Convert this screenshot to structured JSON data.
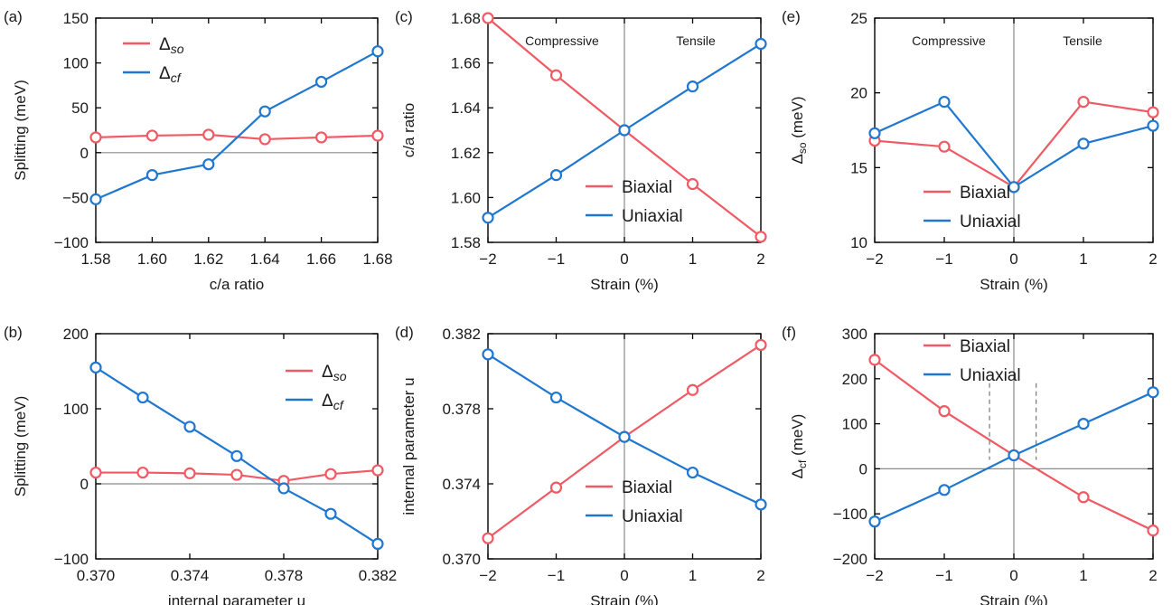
{
  "colors": {
    "red": "#ef5a64",
    "blue": "#1f77d0",
    "axis": "#000000",
    "zero": "#8a8a8a"
  },
  "chart_data": [
    {
      "panel": "(a)",
      "type": "line",
      "xlabel": "c/a ratio",
      "ylabel": "Splitting (meV)",
      "xlim": [
        1.58,
        1.68
      ],
      "ylim": [
        -100,
        150
      ],
      "xticks": [
        "1.58",
        "1.60",
        "1.62",
        "1.64",
        "1.66",
        "1.68"
      ],
      "yticks": [
        "−100",
        "−50",
        "0",
        "50",
        "100",
        "150"
      ],
      "x": [
        1.58,
        1.6,
        1.62,
        1.64,
        1.66,
        1.68
      ],
      "series": [
        {
          "name": "Δso",
          "sym": "Δ",
          "sub": "so",
          "color": "red",
          "values": [
            17,
            19,
            20,
            15,
            17,
            19
          ]
        },
        {
          "name": "Δcf",
          "sym": "Δ",
          "sub": "cf",
          "color": "blue",
          "values": [
            -52,
            -25,
            -13,
            46,
            79,
            113
          ]
        }
      ],
      "zero_line": true,
      "legend": "top-left",
      "grid": false
    },
    {
      "panel": "(c)",
      "type": "line",
      "xlabel": "Strain (%)",
      "ylabel": "c/a ratio",
      "xlim": [
        -2,
        2
      ],
      "ylim": [
        1.58,
        1.68
      ],
      "xticks": [
        "−2",
        "−1",
        "0",
        "1",
        "2"
      ],
      "yticks": [
        "1.58",
        "1.60",
        "1.62",
        "1.64",
        "1.66",
        "1.68"
      ],
      "x": [
        -2,
        -1,
        0,
        1,
        2
      ],
      "series": [
        {
          "name": "Biaxial",
          "color": "red",
          "values": [
            1.68,
            1.6545,
            1.63,
            1.606,
            1.5825
          ]
        },
        {
          "name": "Uniaxial",
          "color": "blue",
          "values": [
            1.591,
            1.61,
            1.63,
            1.6495,
            1.6685
          ]
        }
      ],
      "annotations": [
        "Compressive",
        "Tensile"
      ],
      "legend": "bottom-right",
      "grid": false
    },
    {
      "panel": "(e)",
      "type": "line",
      "xlabel": "Strain (%)",
      "ylabel": "Δso (meV)",
      "xlim": [
        -2,
        2
      ],
      "ylim": [
        10,
        25
      ],
      "xticks": [
        "−2",
        "−1",
        "0",
        "1",
        "2"
      ],
      "yticks": [
        "10",
        "15",
        "20",
        "25"
      ],
      "x": [
        -2,
        -1,
        0,
        1,
        2
      ],
      "series": [
        {
          "name": "Biaxial",
          "color": "red",
          "values": [
            16.8,
            16.4,
            13.7,
            19.4,
            18.7
          ]
        },
        {
          "name": "Uniaxial",
          "color": "blue",
          "values": [
            17.3,
            19.4,
            13.7,
            16.6,
            17.8
          ]
        }
      ],
      "annotations": [
        "Compressive",
        "Tensile"
      ],
      "legend": "bottom-right",
      "grid": false
    },
    {
      "panel": "(b)",
      "type": "line",
      "xlabel": "internal parameter u",
      "ylabel": "Splitting (meV)",
      "xlim": [
        0.37,
        0.382
      ],
      "ylim": [
        -100,
        200
      ],
      "xticks": [
        "0.370",
        "0.374",
        "0.378",
        "0.382"
      ],
      "yticks": [
        "−100",
        "0",
        "100",
        "200"
      ],
      "x": [
        0.37,
        0.372,
        0.374,
        0.376,
        0.378,
        0.38,
        0.382
      ],
      "series": [
        {
          "name": "Δso",
          "sym": "Δ",
          "sub": "so",
          "color": "red",
          "values": [
            15,
            15,
            14,
            12,
            4,
            13,
            18
          ]
        },
        {
          "name": "Δcf",
          "sym": "Δ",
          "sub": "cf",
          "color": "blue",
          "values": [
            155,
            115,
            76,
            37,
            -6,
            -40,
            -80
          ]
        }
      ],
      "zero_line": true,
      "legend": "top-right",
      "grid": false
    },
    {
      "panel": "(d)",
      "type": "line",
      "xlabel": "Strain (%)",
      "ylabel": "internal parameter u",
      "xlim": [
        -2,
        2
      ],
      "ylim": [
        0.37,
        0.382
      ],
      "xticks": [
        "−2",
        "−1",
        "0",
        "1",
        "2"
      ],
      "yticks": [
        "0.370",
        "0.374",
        "0.378",
        "0.382"
      ],
      "x": [
        -2,
        -1,
        0,
        1,
        2
      ],
      "series": [
        {
          "name": "Biaxial",
          "color": "red",
          "values": [
            0.3711,
            0.3738,
            0.3765,
            0.379,
            0.3814
          ]
        },
        {
          "name": "Uniaxial",
          "color": "blue",
          "values": [
            0.3809,
            0.3786,
            0.3765,
            0.3746,
            0.3729
          ]
        }
      ],
      "legend": "bottom-right",
      "grid": false
    },
    {
      "panel": "(f)",
      "type": "line",
      "xlabel": "Strain (%)",
      "ylabel": "Δcf (meV)",
      "xlim": [
        -2,
        2
      ],
      "ylim": [
        -200,
        300
      ],
      "xticks": [
        "−2",
        "−1",
        "0",
        "1",
        "2"
      ],
      "yticks": [
        "−200",
        "−100",
        "0",
        "100",
        "200",
        "300"
      ],
      "x": [
        -2,
        -1,
        0,
        1,
        2
      ],
      "series": [
        {
          "name": "Biaxial",
          "color": "red",
          "values": [
            242,
            128,
            30,
            -63,
            -137
          ]
        },
        {
          "name": "Uniaxial",
          "color": "blue",
          "values": [
            -117,
            -47,
            30,
            100,
            170
          ]
        }
      ],
      "zero_line": true,
      "dashed_x": [
        -0.35,
        0.32
      ],
      "legend": "top-left",
      "grid": false
    }
  ]
}
